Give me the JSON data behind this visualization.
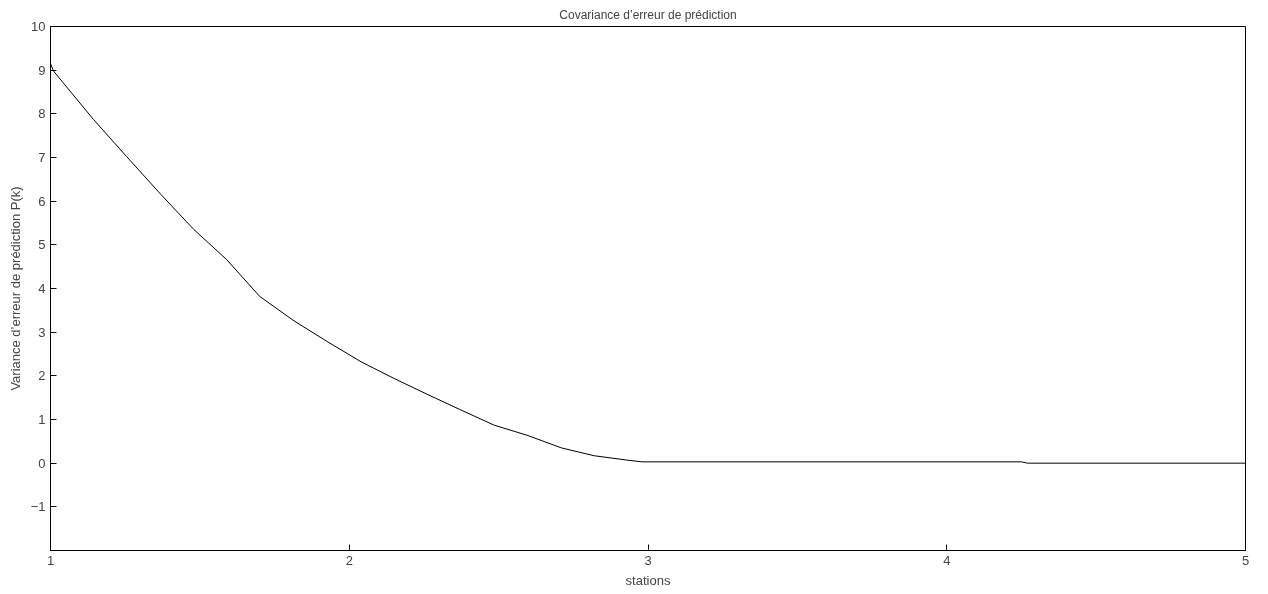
{
  "chart_data": {
    "type": "line",
    "title": "Covariance d’erreur de prédiction",
    "xlabel": "stations",
    "ylabel": "Variance d’erreur de prédiction P(k)",
    "x": [
      1.0,
      1.01,
      1.144,
      1.255,
      1.37,
      1.48,
      1.59,
      1.7,
      1.815,
      1.925,
      2.04,
      2.15,
      2.26,
      2.37,
      2.485,
      2.595,
      2.71,
      2.82,
      2.93,
      2.98,
      4.25,
      4.27,
      5.0
    ],
    "series": [
      {
        "color": "#000000",
        "values": [
          9.15,
          8.98,
          7.87,
          7.02,
          6.15,
          5.35,
          4.66,
          3.82,
          3.26,
          2.79,
          2.32,
          1.94,
          1.58,
          1.23,
          0.87,
          0.64,
          0.35,
          0.17,
          0.07,
          0.03,
          0.03,
          0.0,
          0.0
        ]
      }
    ],
    "xlim": [
      1,
      5
    ],
    "ylim": [
      -2,
      10
    ],
    "xticks": [
      1,
      2,
      3,
      4,
      5
    ],
    "yticks": [
      -1,
      0,
      1,
      2,
      3,
      4,
      5,
      6,
      7,
      8,
      9,
      10
    ],
    "grid": false,
    "marker": "none",
    "line_style": "solid"
  }
}
